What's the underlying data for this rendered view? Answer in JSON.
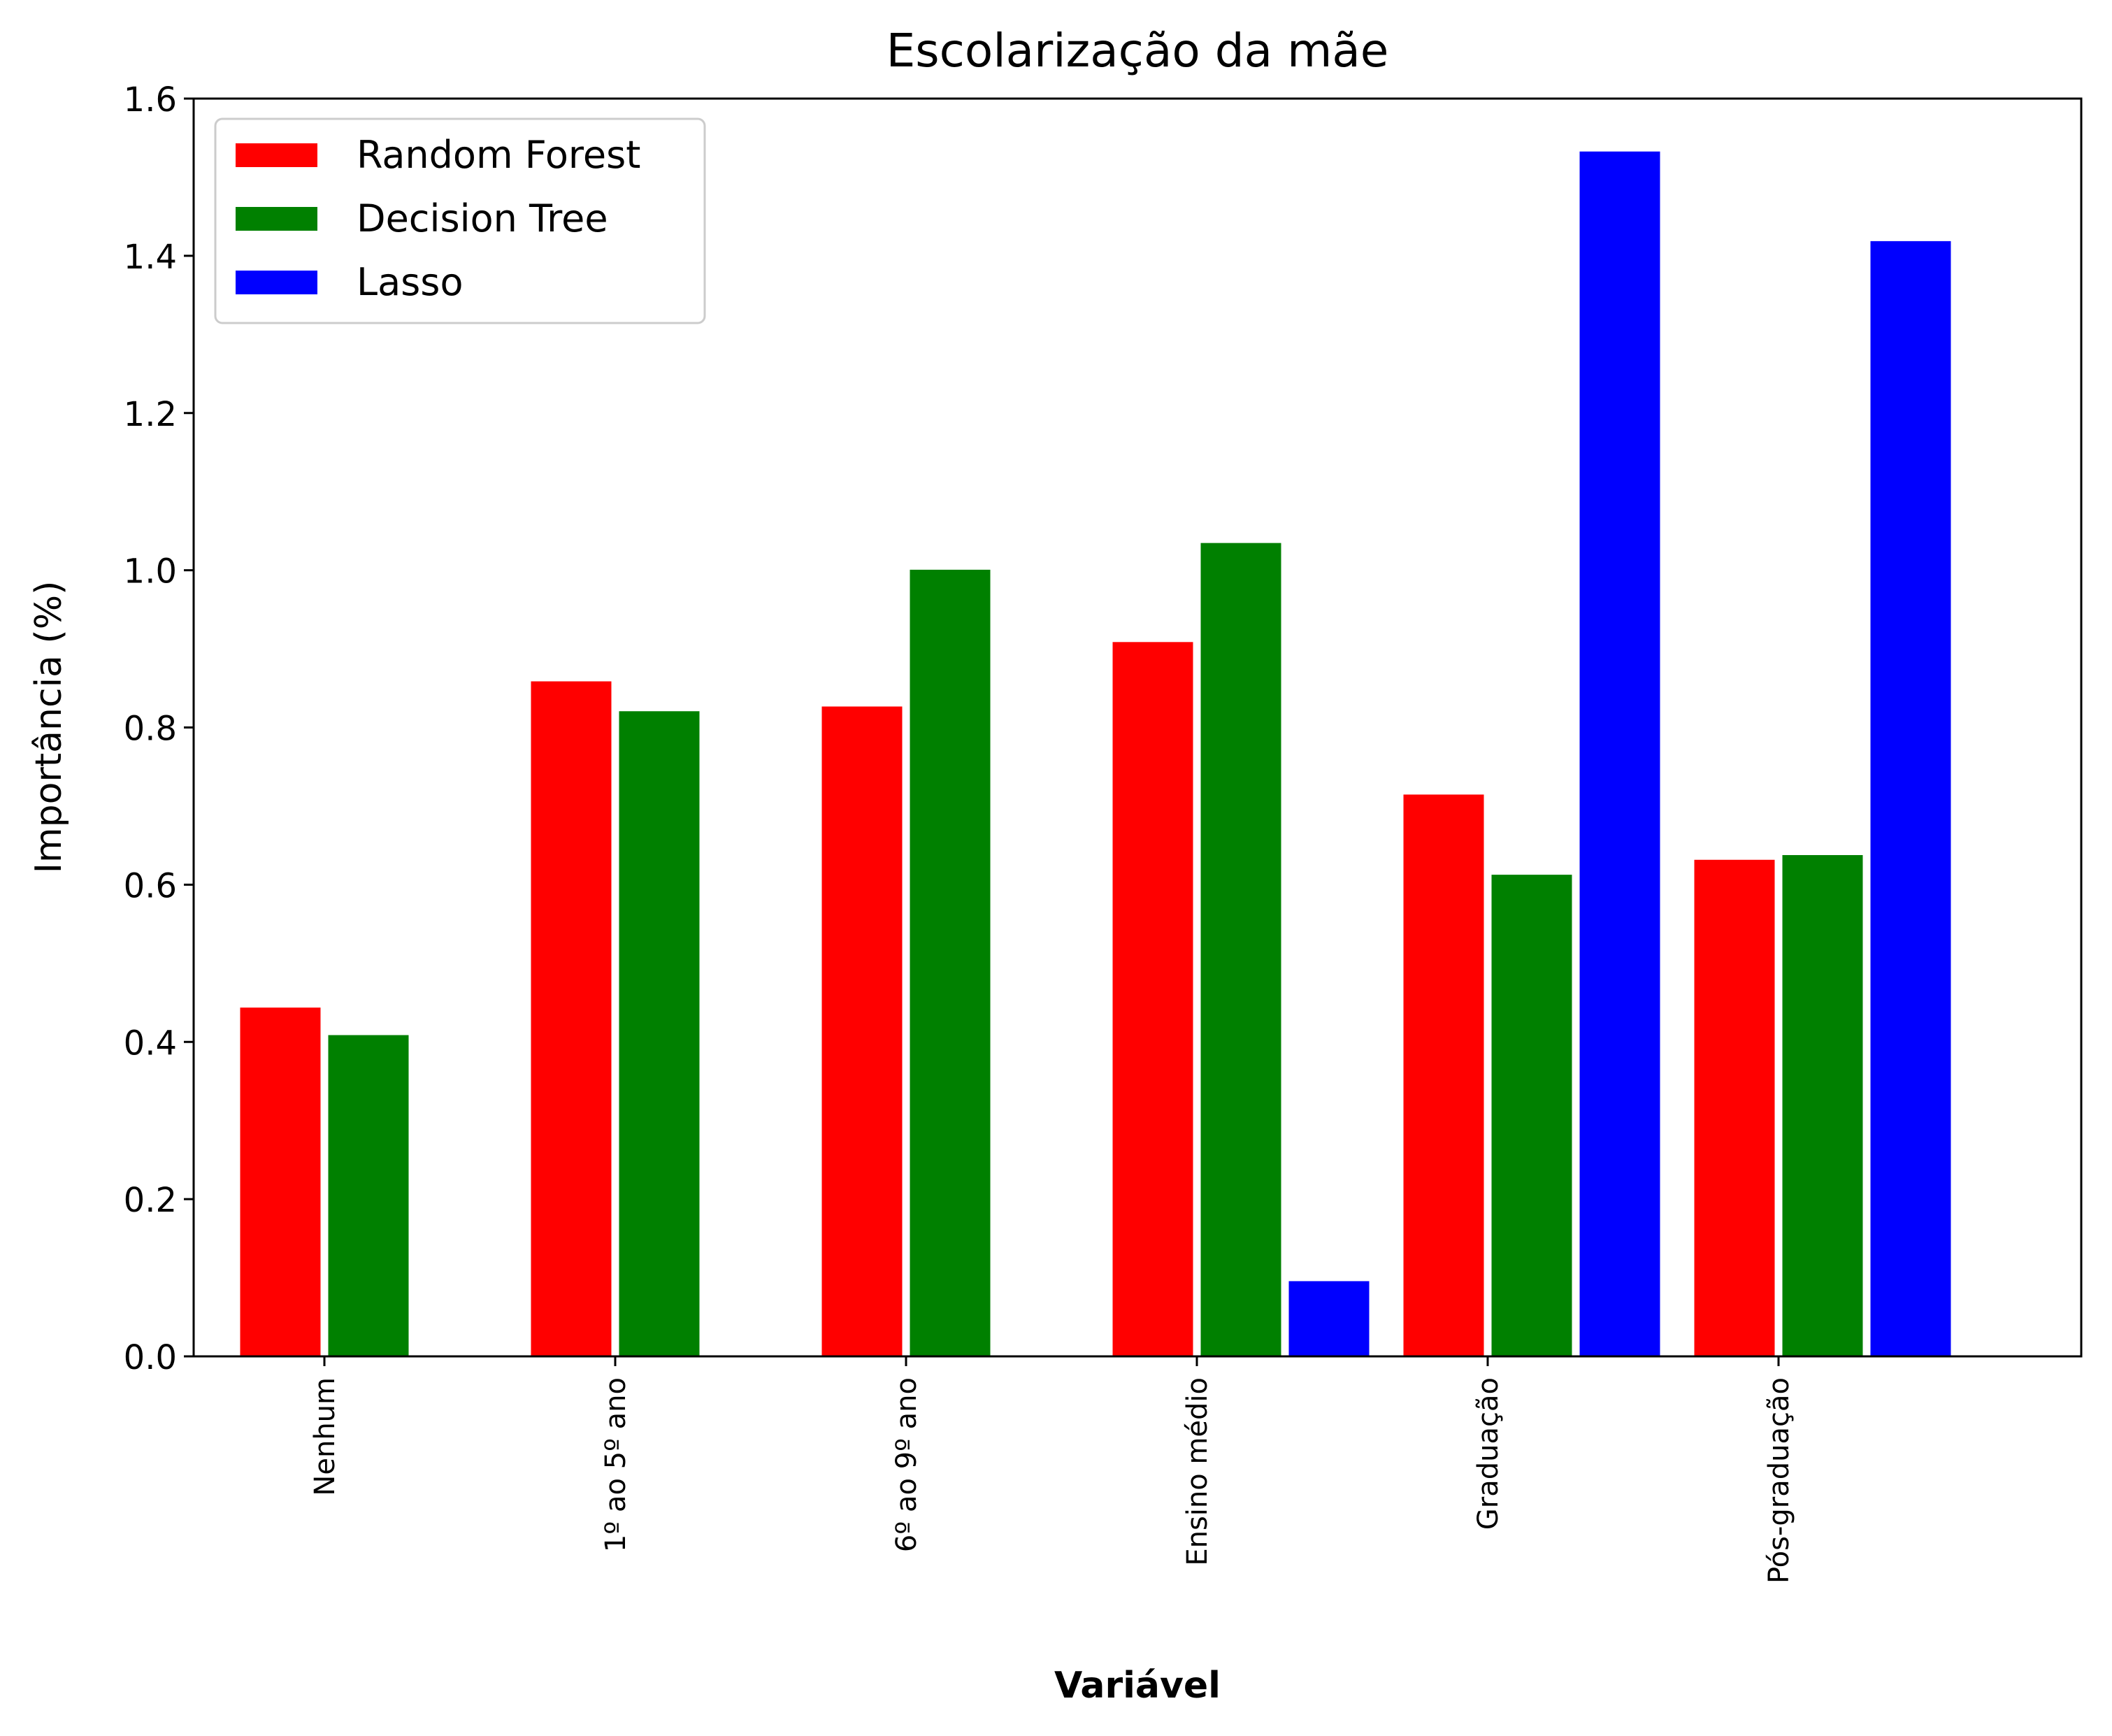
{
  "chart_data": {
    "type": "bar",
    "title": "Escolarização da mãe",
    "xlabel": "Variável",
    "ylabel": "Importância (%)",
    "categories": [
      "Nenhum",
      "1º ao 5º ano",
      "6º ao 9º ano",
      "Ensino médio",
      "Graduação",
      "Pós-graduação"
    ],
    "series": [
      {
        "name": "Random Forest",
        "color": "#ff0000",
        "values": [
          0.445,
          0.86,
          0.828,
          0.91,
          0.716,
          0.633
        ]
      },
      {
        "name": "Decision Tree",
        "color": "#008000",
        "values": [
          0.41,
          0.822,
          1.002,
          1.036,
          0.614,
          0.639
        ]
      },
      {
        "name": "Lasso",
        "color": "#0000ff",
        "values": [
          0.0,
          0.0,
          0.0,
          0.097,
          1.534,
          1.42
        ]
      }
    ],
    "ylim": [
      0,
      1.6
    ],
    "yticks": [
      "0.0",
      "0.2",
      "0.4",
      "0.6",
      "0.8",
      "1.0",
      "1.2",
      "1.4",
      "1.6"
    ],
    "legend_position": "top-left",
    "grid": false
  }
}
